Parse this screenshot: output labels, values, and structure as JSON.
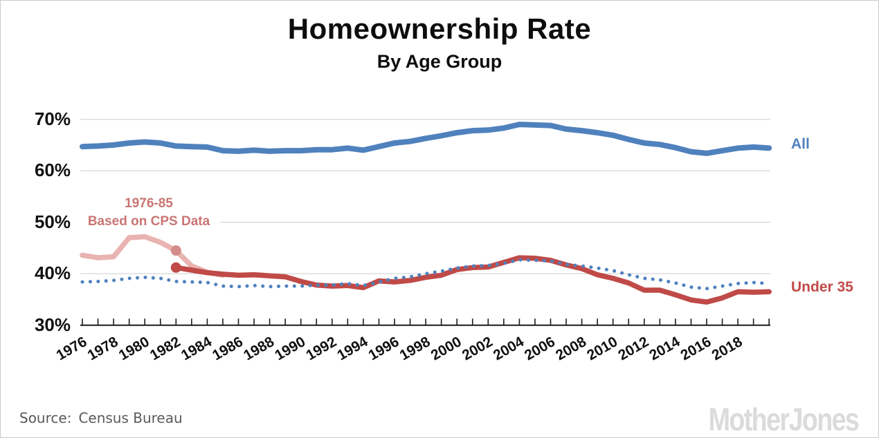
{
  "header": {
    "title": "Homeownership Rate",
    "subtitle": "By Age Group"
  },
  "footer": {
    "source_label": "Source:",
    "source_value": "Census Bureau",
    "source_color": "#595959",
    "brand": "MotherJones",
    "brand_color": "#dbdbdb"
  },
  "page": {
    "border_color": "#c9c9c9",
    "background": "#ffffff"
  },
  "chart_data": {
    "type": "line",
    "title": "Homeownership Rate",
    "subtitle": "By Age Group",
    "xlabel": "",
    "ylabel": "",
    "xlim": [
      1976,
      2020
    ],
    "ylim": [
      30,
      70
    ],
    "yticks": [
      30,
      40,
      50,
      60,
      70
    ],
    "ytick_labels": [
      "30%",
      "40%",
      "50%",
      "60%",
      "70%"
    ],
    "xtick_labels": [
      "1976",
      "1978",
      "1980",
      "1982",
      "1984",
      "1986",
      "1988",
      "1990",
      "1992",
      "1994",
      "1996",
      "1998",
      "2000",
      "2002",
      "2004",
      "2006",
      "2008",
      "2010",
      "2012",
      "2014",
      "2016",
      "2018"
    ],
    "xticks_every_year": true,
    "grid": "horizontal",
    "grid_color": "#d9d9d9",
    "axis_color": "#1a1a1a",
    "tick_label_color": "#111111",
    "series": [
      {
        "key": "all",
        "name": "All",
        "color": "#4f81bd",
        "style": "solid",
        "width": 8,
        "start_year": 1976,
        "values": [
          64.7,
          64.8,
          65.0,
          65.4,
          65.6,
          65.4,
          64.8,
          64.7,
          64.6,
          63.9,
          63.8,
          64.0,
          63.8,
          63.9,
          63.9,
          64.1,
          64.1,
          64.4,
          64.0,
          64.7,
          65.4,
          65.7,
          66.3,
          66.8,
          67.4,
          67.8,
          67.9,
          68.3,
          69.0,
          68.9,
          68.8,
          68.1,
          67.8,
          67.4,
          66.9,
          66.1,
          65.4,
          65.1,
          64.5,
          63.7,
          63.4,
          63.9,
          64.4,
          64.6,
          64.4
        ]
      },
      {
        "key": "under35",
        "name": "Under 35",
        "color": "#bf4a47",
        "style": "solid",
        "width": 7.5,
        "start_year": 1982,
        "values": [
          41.2,
          40.7,
          40.2,
          39.9,
          39.7,
          39.8,
          39.6,
          39.4,
          38.5,
          37.8,
          37.6,
          37.7,
          37.3,
          38.6,
          38.4,
          38.7,
          39.3,
          39.7,
          40.8,
          41.2,
          41.3,
          42.2,
          43.1,
          43.0,
          42.6,
          41.7,
          41.0,
          39.8,
          39.1,
          38.2,
          36.8,
          36.8,
          35.9,
          34.9,
          34.5,
          35.3,
          36.5,
          36.4,
          36.5
        ]
      },
      {
        "key": "cps_1976_85",
        "name": "Under 35, 1976-85 (Based on CPS Data)",
        "color": "#e9b3b1",
        "style": "solid",
        "width": 7.5,
        "start_year": 1976,
        "values": [
          43.6,
          43.1,
          43.3,
          47.0,
          47.2,
          46.1,
          44.5,
          41.5,
          40.3,
          39.7
        ]
      },
      {
        "key": "dotted_unlabeled",
        "name": "Unlabeled dotted comparison line (All series shifted down)",
        "color": "#4f81bd",
        "style": "dotted",
        "width": 5,
        "start_year": 1976,
        "values": [
          38.4,
          38.5,
          38.7,
          39.1,
          39.3,
          39.1,
          38.5,
          38.4,
          38.3,
          37.6,
          37.5,
          37.7,
          37.5,
          37.6,
          37.6,
          37.8,
          37.8,
          38.1,
          37.7,
          38.4,
          39.1,
          39.4,
          40.0,
          40.5,
          41.1,
          41.5,
          41.6,
          42.0,
          42.7,
          42.6,
          42.5,
          41.8,
          41.5,
          41.1,
          40.6,
          39.8,
          39.1,
          38.8,
          38.2,
          37.4,
          37.1,
          37.6,
          38.1,
          38.3,
          38.1
        ]
      }
    ],
    "markers": [
      {
        "year": 1982,
        "value": 44.5,
        "color": "#d38c8a",
        "radius": 7.5
      },
      {
        "year": 1982,
        "value": 41.2,
        "color": "#bf4a47",
        "radius": 7.5
      }
    ],
    "annotation": {
      "line1": "1976-85",
      "line2": "Based on CPS Data",
      "color": "#c97573"
    },
    "legend_position": "right-of-lines"
  }
}
